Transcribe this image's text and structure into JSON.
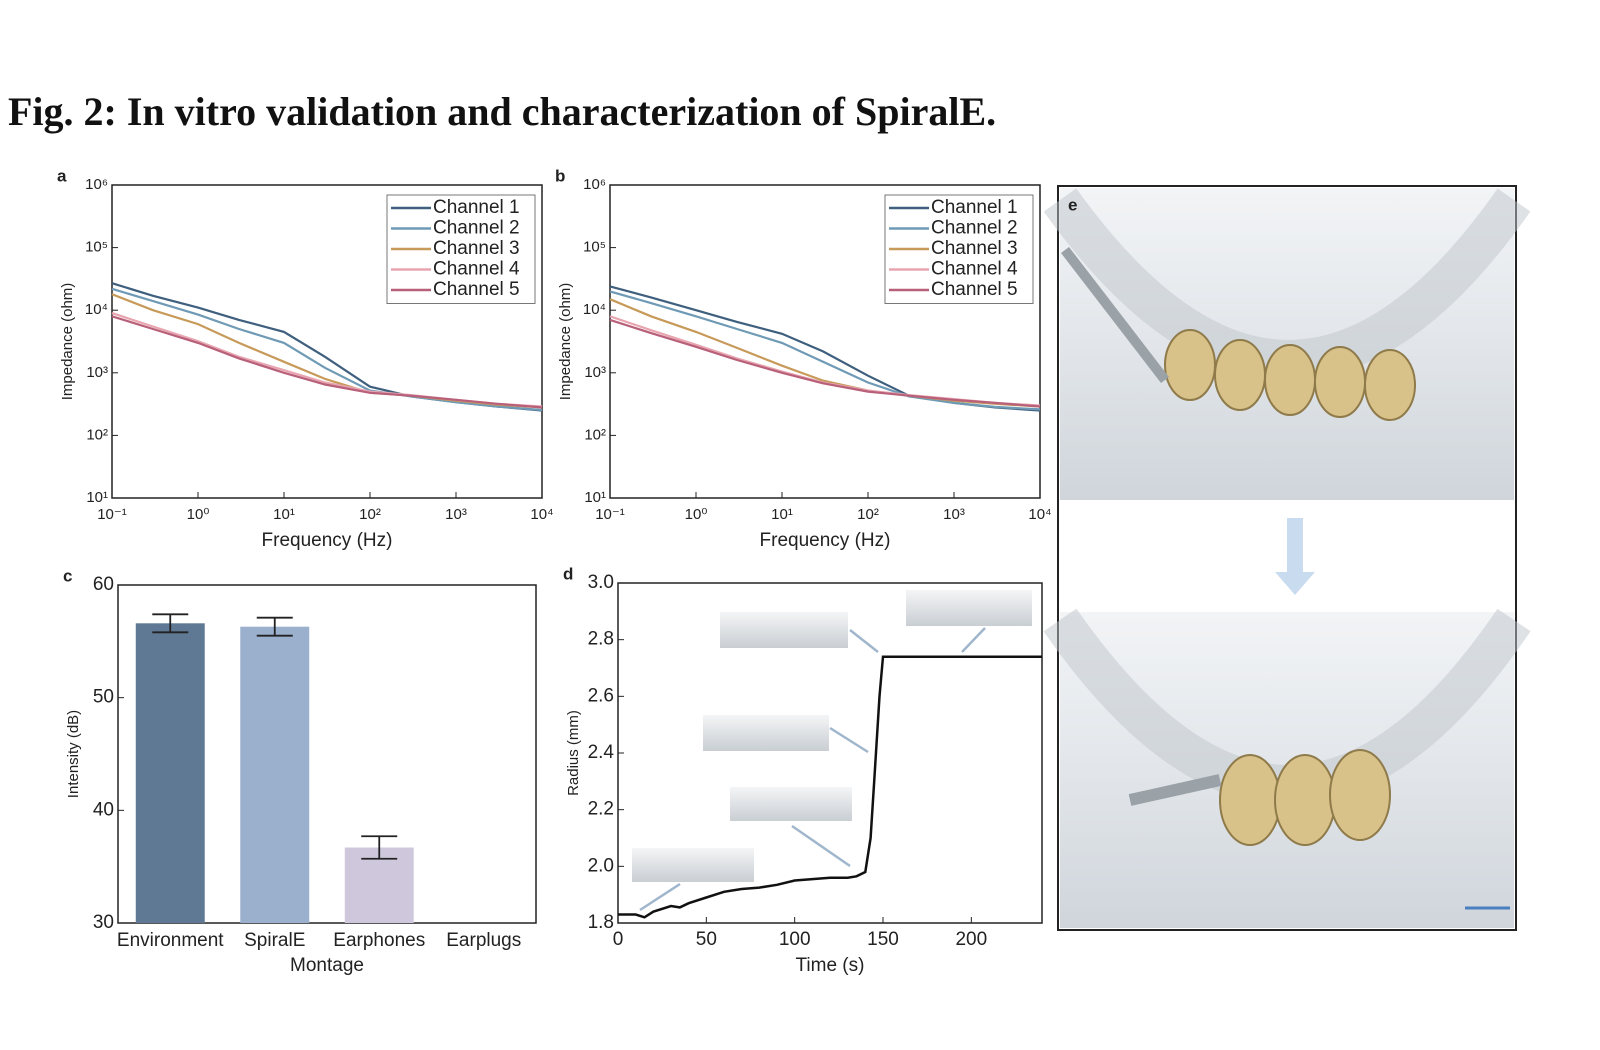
{
  "title": "Fig. 2: In vitro validation and characterization of SpiralE.",
  "chart_data": [
    {
      "type": "line",
      "label": "a",
      "xlabel": "Frequency (Hz)",
      "ylabel": "Impedance (ohm)",
      "xscale": "log",
      "yscale": "log",
      "xlim": [
        0.1,
        10000
      ],
      "ylim": [
        10,
        1000000
      ],
      "xticks": [
        {
          "value": 0.1,
          "label": "10⁻¹"
        },
        {
          "value": 1,
          "label": "10⁰"
        },
        {
          "value": 10,
          "label": "10¹"
        },
        {
          "value": 100,
          "label": "10²"
        },
        {
          "value": 1000,
          "label": "10³"
        },
        {
          "value": 10000,
          "label": "10⁴"
        }
      ],
      "yticks": [
        {
          "value": 10,
          "label": "10¹"
        },
        {
          "value": 100,
          "label": "10²"
        },
        {
          "value": 1000,
          "label": "10³"
        },
        {
          "value": 10000,
          "label": "10⁴"
        },
        {
          "value": 100000,
          "label": "10⁵"
        },
        {
          "value": 1000000,
          "label": "10⁶"
        }
      ],
      "x": [
        0.1,
        0.3,
        1,
        3,
        10,
        30,
        100,
        300,
        1000,
        3000,
        10000
      ],
      "series": [
        {
          "name": "Channel 1",
          "color": "#3e5f7e",
          "values": [
            27000,
            17000,
            11000,
            7000,
            4500,
            1800,
            600,
            420,
            340,
            290,
            250
          ]
        },
        {
          "name": "Channel 2",
          "color": "#6f9ab5",
          "values": [
            22000,
            14000,
            8500,
            5000,
            3000,
            1200,
            520,
            420,
            340,
            290,
            255
          ]
        },
        {
          "name": "Channel 3",
          "color": "#c79a5a",
          "values": [
            18000,
            10000,
            6000,
            3000,
            1500,
            800,
            480,
            430,
            360,
            310,
            280
          ]
        },
        {
          "name": "Channel 4",
          "color": "#e8a5b0",
          "values": [
            9000,
            5500,
            3200,
            1800,
            1100,
            700,
            500,
            440,
            370,
            320,
            290
          ]
        },
        {
          "name": "Channel 5",
          "color": "#b8607a",
          "values": [
            8000,
            5000,
            3000,
            1700,
            1000,
            650,
            480,
            430,
            370,
            320,
            280
          ]
        }
      ]
    },
    {
      "type": "line",
      "label": "b",
      "xlabel": "Frequency (Hz)",
      "ylabel": "Impedance (ohm)",
      "xscale": "log",
      "yscale": "log",
      "xlim": [
        0.1,
        10000
      ],
      "ylim": [
        10,
        1000000
      ],
      "xticks": [
        {
          "value": 0.1,
          "label": "10⁻¹"
        },
        {
          "value": 1,
          "label": "10⁰"
        },
        {
          "value": 10,
          "label": "10¹"
        },
        {
          "value": 100,
          "label": "10²"
        },
        {
          "value": 1000,
          "label": "10³"
        },
        {
          "value": 10000,
          "label": "10⁴"
        }
      ],
      "yticks": [
        {
          "value": 10,
          "label": "10¹"
        },
        {
          "value": 100,
          "label": "10²"
        },
        {
          "value": 1000,
          "label": "10³"
        },
        {
          "value": 10000,
          "label": "10⁴"
        },
        {
          "value": 100000,
          "label": "10⁵"
        },
        {
          "value": 1000000,
          "label": "10⁶"
        }
      ],
      "x": [
        0.1,
        0.3,
        1,
        3,
        10,
        30,
        100,
        300,
        1000,
        3000,
        10000
      ],
      "series": [
        {
          "name": "Channel 1",
          "color": "#3e5f7e",
          "values": [
            24000,
            16000,
            10000,
            6500,
            4200,
            2200,
            900,
            430,
            330,
            280,
            250
          ]
        },
        {
          "name": "Channel 2",
          "color": "#6f9ab5",
          "values": [
            20000,
            13000,
            8000,
            5000,
            3000,
            1500,
            700,
            420,
            330,
            285,
            260
          ]
        },
        {
          "name": "Channel 3",
          "color": "#c79a5a",
          "values": [
            15000,
            8000,
            4500,
            2500,
            1300,
            750,
            520,
            430,
            360,
            320,
            290
          ]
        },
        {
          "name": "Channel 4",
          "color": "#e8a5b0",
          "values": [
            8000,
            4800,
            2800,
            1700,
            1050,
            700,
            520,
            440,
            380,
            330,
            300
          ]
        },
        {
          "name": "Channel 5",
          "color": "#b8607a",
          "values": [
            7000,
            4300,
            2600,
            1600,
            1000,
            680,
            500,
            430,
            370,
            330,
            290
          ]
        }
      ]
    },
    {
      "type": "bar",
      "label": "c",
      "xlabel": "Montage",
      "ylabel": "Intensity (dB)",
      "categories": [
        "Environment",
        "SpiralE",
        "Earphones",
        "Earplugs"
      ],
      "values": [
        56.6,
        56.3,
        36.7,
        null
      ],
      "errors": [
        0.8,
        0.8,
        1.0,
        null
      ],
      "colors": [
        "#5f7894",
        "#9ab0cc",
        "#cfc8dc",
        "#cccccc"
      ],
      "ylim": [
        30,
        60
      ],
      "yticks": [
        30,
        40,
        50,
        60
      ]
    },
    {
      "type": "line",
      "label": "d",
      "xlabel": "Time (s)",
      "ylabel": "Radius (mm)",
      "color": "#111111",
      "xlim": [
        0,
        240
      ],
      "xticks": [
        0,
        50,
        100,
        150,
        200
      ],
      "ylim": [
        1.8,
        3.0
      ],
      "yticks": [
        1.8,
        {
          "value": 2,
          "label": "2.0"
        },
        2.2,
        2.4,
        2.6,
        2.8,
        {
          "value": 3,
          "label": "3.0"
        }
      ],
      "x": [
        0,
        10,
        15,
        20,
        30,
        35,
        40,
        50,
        60,
        70,
        80,
        90,
        100,
        110,
        120,
        130,
        135,
        140,
        143,
        145,
        148,
        150,
        240
      ],
      "values": [
        1.83,
        1.83,
        1.82,
        1.84,
        1.86,
        1.855,
        1.87,
        1.89,
        1.91,
        1.92,
        1.925,
        1.935,
        1.95,
        1.955,
        1.96,
        1.96,
        1.965,
        1.98,
        2.1,
        2.3,
        2.6,
        2.74,
        2.74
      ]
    }
  ],
  "photo": {
    "label": "e"
  }
}
